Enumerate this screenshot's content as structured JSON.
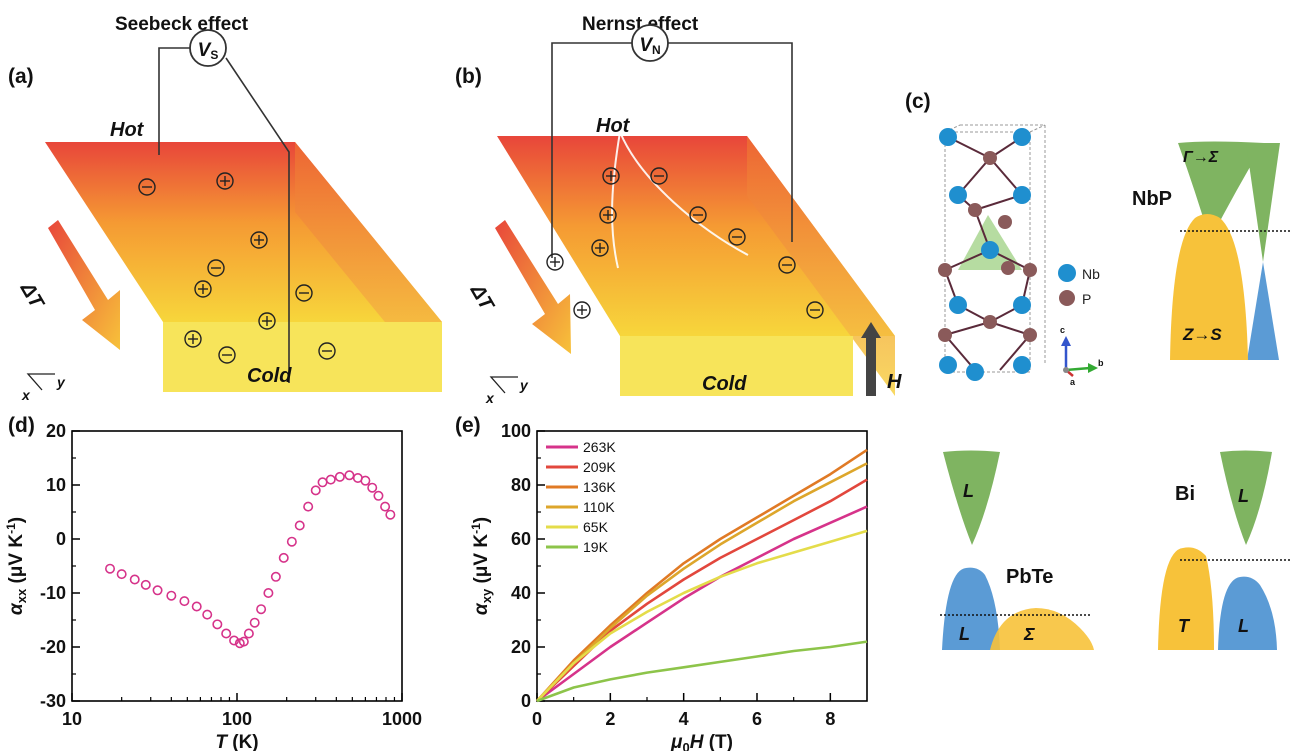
{
  "panel_a": {
    "label": "(a)",
    "title": "Seebeck effect",
    "voltmeter": {
      "main": "V",
      "sub": "S"
    },
    "hot": "Hot",
    "cold": "Cold",
    "delta_t": "ΔT",
    "axis_x": "x",
    "axis_y": "y"
  },
  "panel_b": {
    "label": "(b)",
    "title": "Nernst effect",
    "voltmeter": {
      "main": "V",
      "sub": "N"
    },
    "hot": "Hot",
    "cold": "Cold",
    "delta_t": "ΔT",
    "field": "H",
    "axis_x": "x",
    "axis_y": "y"
  },
  "panel_c": {
    "label": "(c)",
    "legend": [
      "Nb",
      "P"
    ],
    "crystal_axes": [
      "c",
      "a",
      "b"
    ],
    "nbp": {
      "name": "NbP",
      "upper_band": "Γ→Σ",
      "lower_band": "Z→S"
    },
    "pbte": {
      "name": "PbTe",
      "l_upper": "L",
      "l_lower": "L",
      "sigma": "Σ"
    },
    "bi": {
      "name": "Bi",
      "l_upper": "L",
      "t_band": "T",
      "l_lower": "L"
    },
    "colors": {
      "green": "#7fb461",
      "yellow": "#f7c23a",
      "blue": "#5b9bd5"
    }
  },
  "chart_data": [
    {
      "type": "scatter",
      "panel_label": "(d)",
      "title": "",
      "xlabel": "T (K)",
      "ylabel": "α_xx (μV K⁻¹)",
      "xscale": "log",
      "xlim": [
        10,
        1000
      ],
      "ylim": [
        -30,
        20
      ],
      "xticks": [
        10,
        100,
        1000
      ],
      "yticks": [
        -30,
        -20,
        -10,
        0,
        10,
        20
      ],
      "color": "#d6338a",
      "x": [
        17,
        20,
        24,
        28,
        33,
        40,
        48,
        57,
        66,
        76,
        86,
        96,
        104,
        110,
        118,
        128,
        140,
        155,
        172,
        192,
        215,
        240,
        270,
        300,
        330,
        370,
        420,
        480,
        540,
        600,
        660,
        720,
        790,
        850
      ],
      "y": [
        -5.5,
        -6.5,
        -7.5,
        -8.5,
        -9.5,
        -10.5,
        -11.5,
        -12.5,
        -14.0,
        -15.8,
        -17.5,
        -18.8,
        -19.3,
        -19.0,
        -17.5,
        -15.5,
        -13.0,
        -10.0,
        -7.0,
        -3.5,
        -0.5,
        2.5,
        6.0,
        9.0,
        10.5,
        11.0,
        11.5,
        11.8,
        11.3,
        10.8,
        9.5,
        8.0,
        6.0,
        4.5
      ]
    },
    {
      "type": "line",
      "panel_label": "(e)",
      "title": "",
      "xlabel": "μ₀H (T)",
      "ylabel": "α_xy (μV K⁻¹)",
      "xlim": [
        0,
        9
      ],
      "ylim": [
        0,
        100
      ],
      "xticks": [
        0,
        2,
        4,
        6,
        8
      ],
      "yticks": [
        0,
        20,
        40,
        60,
        80,
        100
      ],
      "legend_position": "top-left",
      "x": [
        0,
        1,
        2,
        3,
        4,
        5,
        6,
        7,
        8,
        9
      ],
      "series": [
        {
          "name": "263K",
          "color": "#d6338a",
          "values": [
            0,
            10,
            20,
            29,
            38,
            46,
            53,
            60,
            66,
            72
          ]
        },
        {
          "name": "209K",
          "color": "#e2473d",
          "values": [
            0,
            13,
            26,
            36,
            45,
            53,
            60,
            67,
            74,
            82
          ]
        },
        {
          "name": "136K",
          "color": "#e07a25",
          "values": [
            0,
            15,
            28,
            40,
            51,
            60,
            68,
            76,
            84,
            93
          ]
        },
        {
          "name": "110K",
          "color": "#dda62b",
          "values": [
            0,
            14,
            27,
            39,
            49,
            58,
            66,
            74,
            81,
            88
          ]
        },
        {
          "name": "65K",
          "color": "#e4dc4a",
          "values": [
            0,
            14,
            25,
            33,
            40,
            46,
            51,
            55,
            59,
            63
          ]
        },
        {
          "name": "19K",
          "color": "#8dc44a",
          "values": [
            0,
            5,
            8,
            10.5,
            12.5,
            14.5,
            16.5,
            18.5,
            20,
            22
          ]
        }
      ]
    }
  ]
}
